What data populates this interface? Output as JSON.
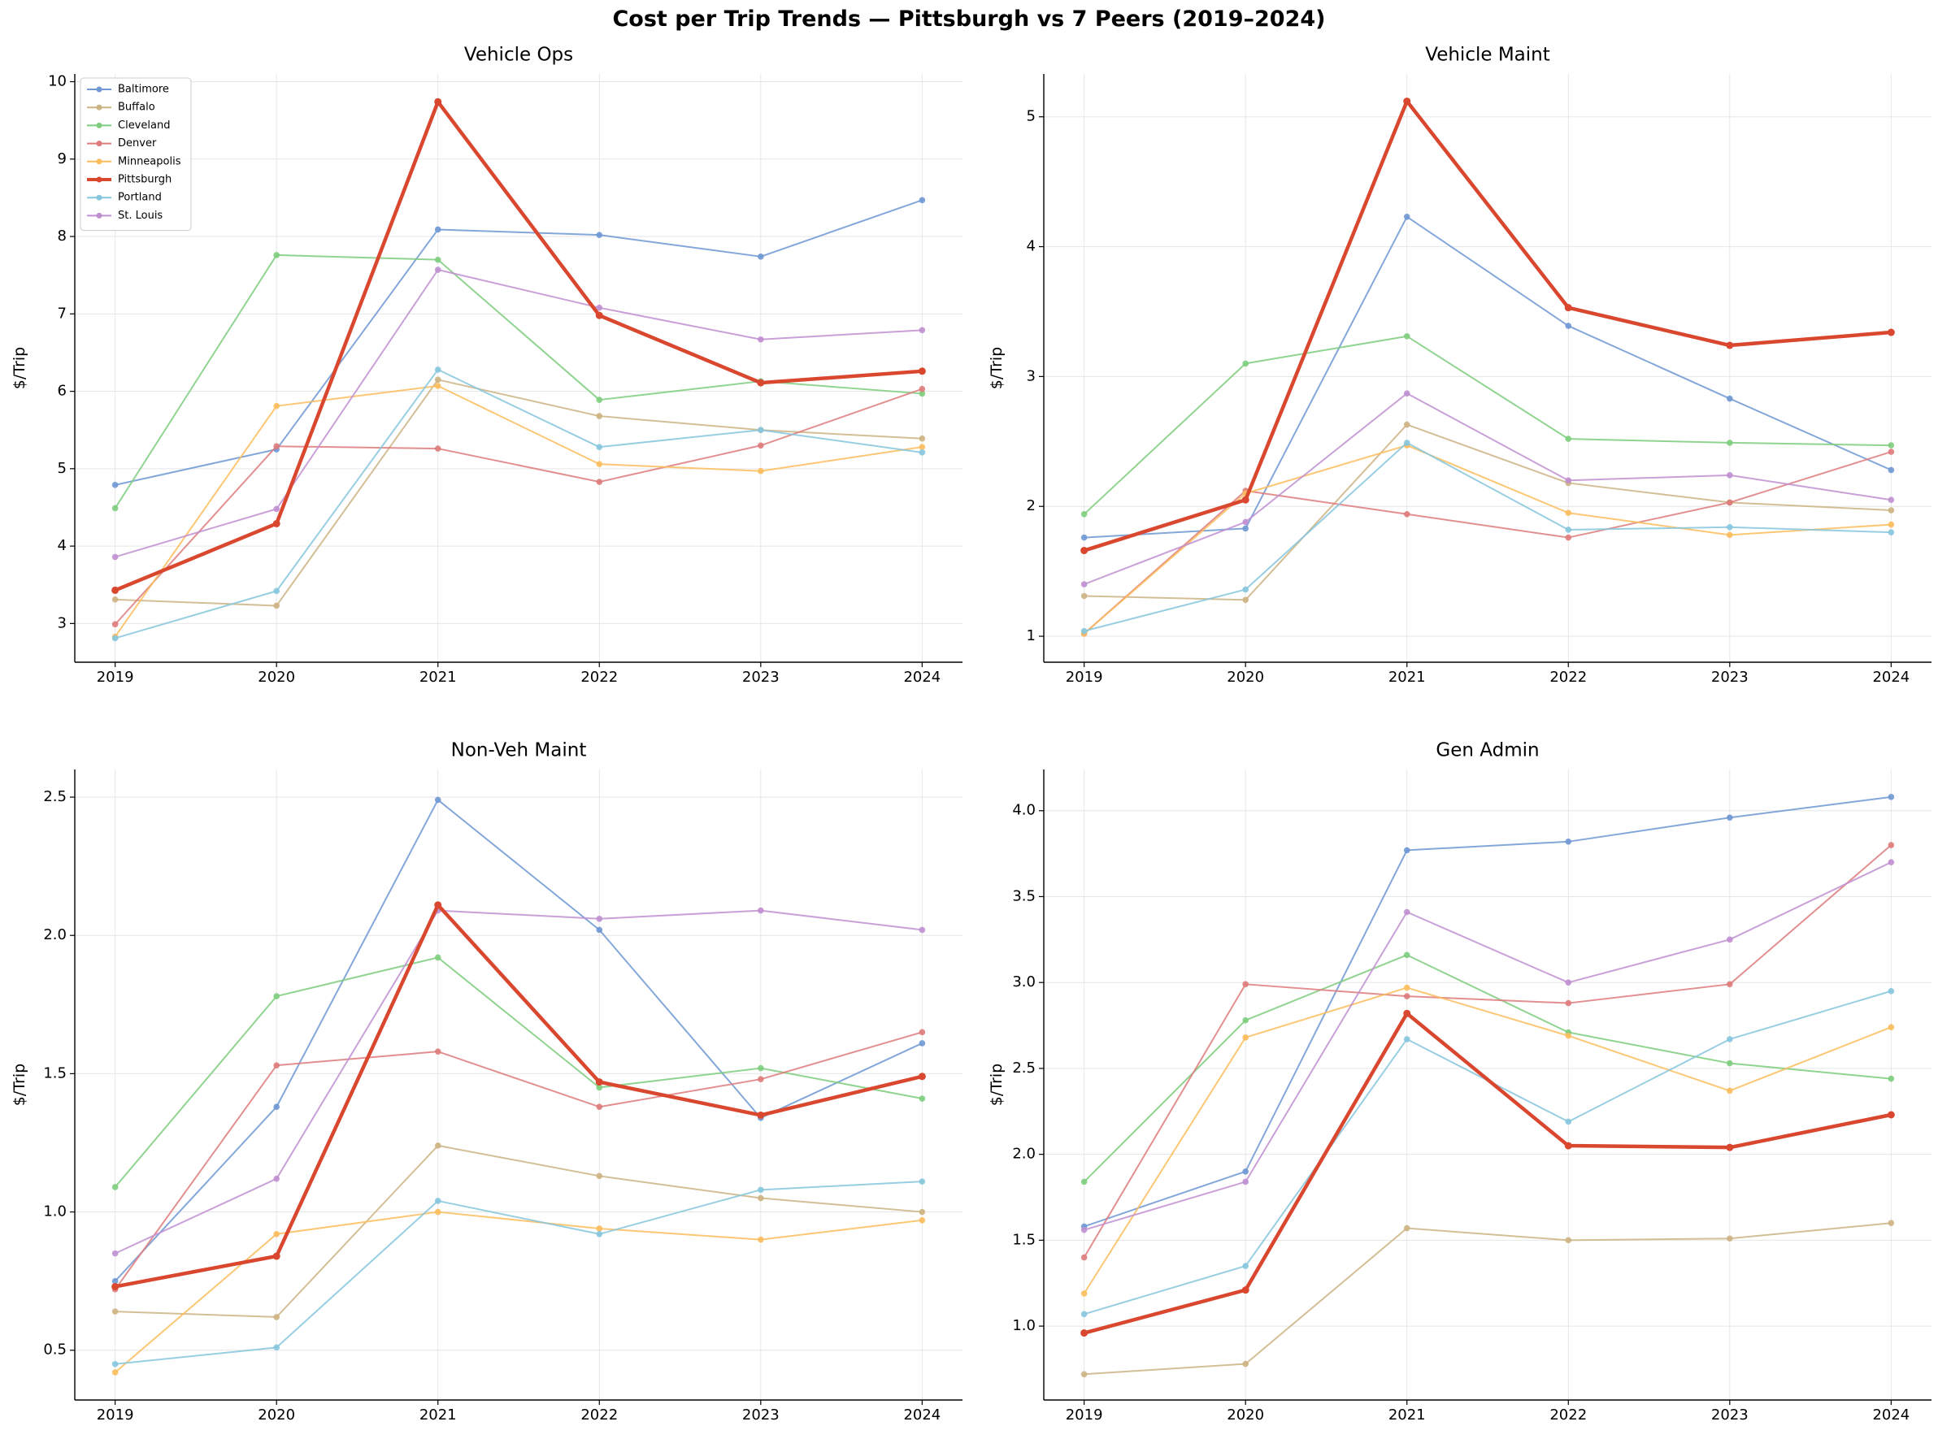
{
  "title": "Cost per Trip Trends — Pittsburgh vs 7 Peers (2019–2024)",
  "colors": {
    "Baltimore": "#6f98d4",
    "Buffalo": "#cdb383",
    "Cleveland": "#7ecd7e",
    "Denver": "#de7b7b",
    "Minneapolis": "#fbbd5c",
    "Pittsburgh": "#d9472f",
    "Portland": "#86c6dd",
    "St. Louis": "#c08fd0"
  },
  "chart_data": [
    {
      "type": "line",
      "title": "Vehicle Ops",
      "ylabel": "$/Trip",
      "x": [
        2019,
        2020,
        2021,
        2022,
        2023,
        2024
      ],
      "yticks": [
        3,
        4,
        5,
        6,
        7,
        8,
        9,
        10
      ],
      "ylim": [
        2.5,
        10.1
      ],
      "grid": true,
      "legend": "top-left",
      "series": [
        {
          "name": "Baltimore",
          "values": [
            4.79,
            5.25,
            8.09,
            8.02,
            7.74,
            8.47
          ]
        },
        {
          "name": "Buffalo",
          "values": [
            3.31,
            3.23,
            6.15,
            5.68,
            5.5,
            5.39
          ]
        },
        {
          "name": "Cleveland",
          "values": [
            4.49,
            7.76,
            7.7,
            5.89,
            6.13,
            5.97
          ]
        },
        {
          "name": "Denver",
          "values": [
            2.99,
            5.29,
            5.26,
            4.83,
            5.3,
            6.03
          ]
        },
        {
          "name": "Minneapolis",
          "values": [
            2.83,
            5.81,
            6.07,
            5.06,
            4.97,
            5.28
          ]
        },
        {
          "name": "Pittsburgh",
          "values": [
            3.43,
            4.29,
            9.74,
            6.98,
            6.11,
            6.26
          ]
        },
        {
          "name": "Portland",
          "values": [
            2.81,
            3.42,
            6.28,
            5.28,
            5.5,
            5.21
          ]
        },
        {
          "name": "St. Louis",
          "values": [
            3.86,
            4.48,
            7.57,
            7.08,
            6.67,
            6.79
          ]
        }
      ]
    },
    {
      "type": "line",
      "title": "Vehicle Maint",
      "ylabel": "$/Trip",
      "x": [
        2019,
        2020,
        2021,
        2022,
        2023,
        2024
      ],
      "yticks": [
        1,
        2,
        3,
        4,
        5
      ],
      "ylim": [
        0.8,
        5.33
      ],
      "grid": true,
      "series": [
        {
          "name": "Baltimore",
          "values": [
            1.76,
            1.83,
            4.23,
            3.39,
            2.83,
            2.28
          ]
        },
        {
          "name": "Buffalo",
          "values": [
            1.31,
            1.28,
            2.63,
            2.18,
            2.03,
            1.97
          ]
        },
        {
          "name": "Cleveland",
          "values": [
            1.94,
            3.1,
            3.31,
            2.52,
            2.49,
            2.47
          ]
        },
        {
          "name": "Denver",
          "values": [
            1.02,
            2.12,
            1.94,
            1.76,
            2.03,
            2.42
          ]
        },
        {
          "name": "Minneapolis",
          "values": [
            1.02,
            2.1,
            2.47,
            1.95,
            1.78,
            1.86
          ]
        },
        {
          "name": "Pittsburgh",
          "values": [
            1.66,
            2.05,
            5.12,
            3.53,
            3.24,
            3.34
          ]
        },
        {
          "name": "Portland",
          "values": [
            1.04,
            1.36,
            2.49,
            1.82,
            1.84,
            1.8
          ]
        },
        {
          "name": "St. Louis",
          "values": [
            1.4,
            1.88,
            2.87,
            2.2,
            2.24,
            2.05
          ]
        }
      ]
    },
    {
      "type": "line",
      "title": "Non-Veh Maint",
      "ylabel": "$/Trip",
      "x": [
        2019,
        2020,
        2021,
        2022,
        2023,
        2024
      ],
      "yticks": [
        0.5,
        1.0,
        1.5,
        2.0,
        2.5
      ],
      "tick_decimals": 1,
      "ylim": [
        0.32,
        2.6
      ],
      "grid": true,
      "series": [
        {
          "name": "Baltimore",
          "values": [
            0.75,
            1.38,
            2.49,
            2.02,
            1.34,
            1.61
          ]
        },
        {
          "name": "Buffalo",
          "values": [
            0.64,
            0.62,
            1.24,
            1.13,
            1.05,
            1.0
          ]
        },
        {
          "name": "Cleveland",
          "values": [
            1.09,
            1.78,
            1.92,
            1.45,
            1.52,
            1.41
          ]
        },
        {
          "name": "Denver",
          "values": [
            0.72,
            1.53,
            1.58,
            1.38,
            1.48,
            1.65
          ]
        },
        {
          "name": "Minneapolis",
          "values": [
            0.42,
            0.92,
            1.0,
            0.94,
            0.9,
            0.97
          ]
        },
        {
          "name": "Pittsburgh",
          "values": [
            0.73,
            0.84,
            2.11,
            1.47,
            1.35,
            1.49
          ]
        },
        {
          "name": "Portland",
          "values": [
            0.45,
            0.51,
            1.04,
            0.92,
            1.08,
            1.11
          ]
        },
        {
          "name": "St. Louis",
          "values": [
            0.85,
            1.12,
            2.09,
            2.06,
            2.09,
            2.02
          ]
        }
      ]
    },
    {
      "type": "line",
      "title": "Gen Admin",
      "ylabel": "$/Trip",
      "x": [
        2019,
        2020,
        2021,
        2022,
        2023,
        2024
      ],
      "yticks": [
        1.0,
        1.5,
        2.0,
        2.5,
        3.0,
        3.5,
        4.0
      ],
      "tick_decimals": 1,
      "ylim": [
        0.57,
        4.24
      ],
      "grid": true,
      "series": [
        {
          "name": "Baltimore",
          "values": [
            1.58,
            1.9,
            3.77,
            3.82,
            3.96,
            4.08
          ]
        },
        {
          "name": "Buffalo",
          "values": [
            0.72,
            0.78,
            1.57,
            1.5,
            1.51,
            1.6
          ]
        },
        {
          "name": "Cleveland",
          "values": [
            1.84,
            2.78,
            3.16,
            2.71,
            2.53,
            2.44
          ]
        },
        {
          "name": "Denver",
          "values": [
            1.4,
            2.99,
            2.92,
            2.88,
            2.99,
            3.8
          ]
        },
        {
          "name": "Minneapolis",
          "values": [
            1.19,
            2.68,
            2.97,
            2.69,
            2.37,
            2.74
          ]
        },
        {
          "name": "Pittsburgh",
          "values": [
            0.96,
            1.21,
            2.82,
            2.05,
            2.04,
            2.23
          ]
        },
        {
          "name": "Portland",
          "values": [
            1.07,
            1.35,
            2.67,
            2.19,
            2.67,
            2.95
          ]
        },
        {
          "name": "St. Louis",
          "values": [
            1.56,
            1.84,
            3.41,
            3.0,
            3.25,
            3.7
          ]
        }
      ]
    }
  ]
}
